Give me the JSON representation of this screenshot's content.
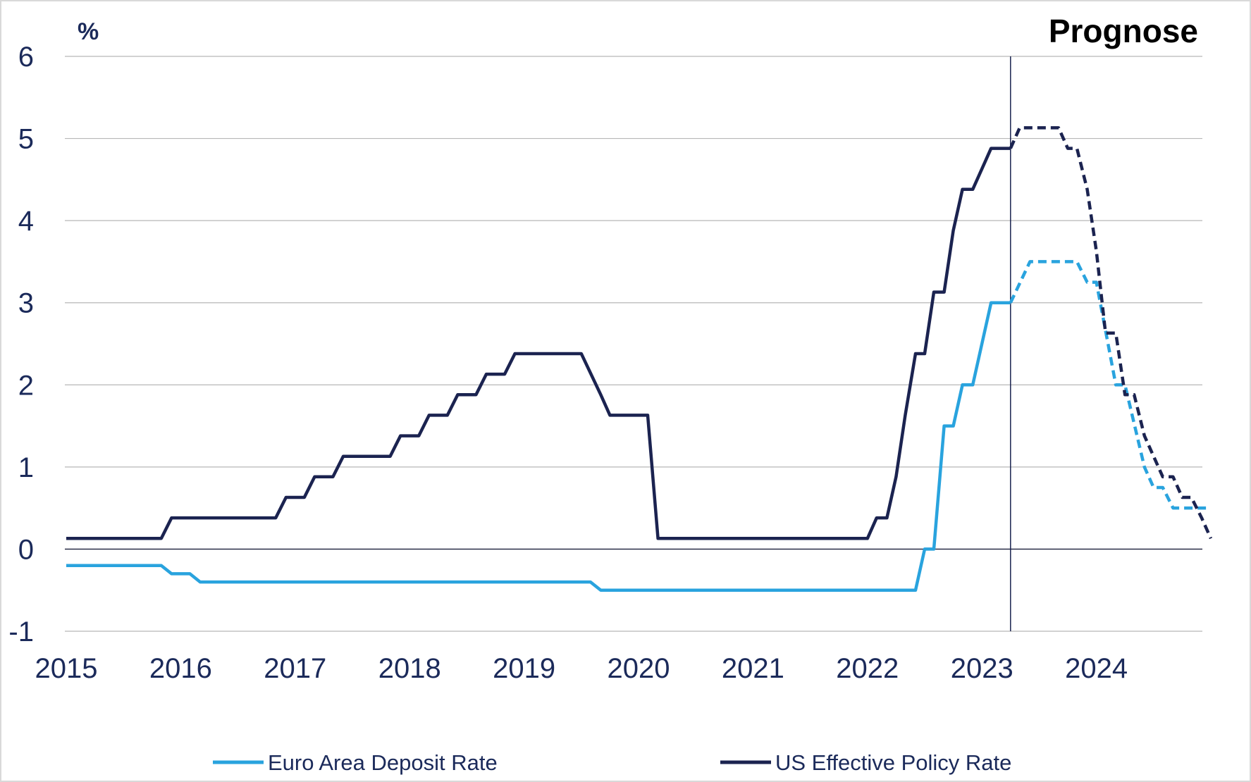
{
  "chart_data": {
    "type": "line",
    "unit_label": "%",
    "annotation": "Prognose",
    "forecast_start": 2023.25,
    "x_range": [
      2015,
      2025
    ],
    "ylim": [
      -1,
      6
    ],
    "y_ticks": [
      "6",
      "5",
      "4",
      "3",
      "2",
      "1",
      "0",
      "-1"
    ],
    "x_ticks": [
      "2015",
      "2016",
      "2017",
      "2018",
      "2019",
      "2020",
      "2021",
      "2022",
      "2023",
      "2024"
    ],
    "grid": "horizontal",
    "legend_position": "bottom",
    "colors": {
      "euro": "#29a3de",
      "us": "#1b2350"
    },
    "series": [
      {
        "name": "Euro Area Deposit Rate",
        "actual": [
          [
            2015.0,
            -0.2
          ],
          [
            2015.83,
            -0.2
          ],
          [
            2015.92,
            -0.3
          ],
          [
            2016.08,
            -0.3
          ],
          [
            2016.17,
            -0.4
          ],
          [
            2019.58,
            -0.4
          ],
          [
            2019.67,
            -0.5
          ],
          [
            2022.42,
            -0.5
          ],
          [
            2022.5,
            0.0
          ],
          [
            2022.58,
            0.0
          ],
          [
            2022.67,
            1.5
          ],
          [
            2022.75,
            1.5
          ],
          [
            2022.83,
            2.0
          ],
          [
            2022.92,
            2.0
          ],
          [
            2023.08,
            3.0
          ],
          [
            2023.25,
            3.0
          ]
        ],
        "forecast": [
          [
            2023.25,
            3.0
          ],
          [
            2023.42,
            3.5
          ],
          [
            2023.83,
            3.5
          ],
          [
            2023.92,
            3.25
          ],
          [
            2024.0,
            3.25
          ],
          [
            2024.17,
            2.0
          ],
          [
            2024.25,
            2.0
          ],
          [
            2024.42,
            1.0
          ],
          [
            2024.5,
            0.75
          ],
          [
            2024.58,
            0.75
          ],
          [
            2024.67,
            0.5
          ],
          [
            2025.0,
            0.5
          ]
        ]
      },
      {
        "name": "US Effective Policy Rate",
        "actual": [
          [
            2015.0,
            0.13
          ],
          [
            2015.83,
            0.13
          ],
          [
            2015.92,
            0.38
          ],
          [
            2016.83,
            0.38
          ],
          [
            2016.92,
            0.63
          ],
          [
            2017.08,
            0.63
          ],
          [
            2017.17,
            0.88
          ],
          [
            2017.33,
            0.88
          ],
          [
            2017.42,
            1.13
          ],
          [
            2017.83,
            1.13
          ],
          [
            2017.92,
            1.38
          ],
          [
            2018.08,
            1.38
          ],
          [
            2018.17,
            1.63
          ],
          [
            2018.33,
            1.63
          ],
          [
            2018.42,
            1.88
          ],
          [
            2018.58,
            1.88
          ],
          [
            2018.67,
            2.13
          ],
          [
            2018.83,
            2.13
          ],
          [
            2018.92,
            2.38
          ],
          [
            2019.5,
            2.38
          ],
          [
            2019.67,
            1.88
          ],
          [
            2019.75,
            1.63
          ],
          [
            2020.08,
            1.63
          ],
          [
            2020.17,
            0.13
          ],
          [
            2022.0,
            0.13
          ],
          [
            2022.08,
            0.38
          ],
          [
            2022.17,
            0.38
          ],
          [
            2022.25,
            0.88
          ],
          [
            2022.33,
            1.63
          ],
          [
            2022.42,
            2.38
          ],
          [
            2022.5,
            2.38
          ],
          [
            2022.58,
            3.13
          ],
          [
            2022.67,
            3.13
          ],
          [
            2022.75,
            3.88
          ],
          [
            2022.83,
            4.38
          ],
          [
            2022.92,
            4.38
          ],
          [
            2023.08,
            4.88
          ],
          [
            2023.25,
            4.88
          ]
        ],
        "forecast": [
          [
            2023.25,
            4.88
          ],
          [
            2023.33,
            5.13
          ],
          [
            2023.67,
            5.13
          ],
          [
            2023.75,
            4.88
          ],
          [
            2023.83,
            4.88
          ],
          [
            2023.92,
            4.38
          ],
          [
            2024.0,
            3.63
          ],
          [
            2024.08,
            2.63
          ],
          [
            2024.17,
            2.63
          ],
          [
            2024.25,
            1.88
          ],
          [
            2024.33,
            1.88
          ],
          [
            2024.42,
            1.38
          ],
          [
            2024.58,
            0.88
          ],
          [
            2024.67,
            0.88
          ],
          [
            2024.75,
            0.63
          ],
          [
            2024.83,
            0.63
          ],
          [
            2024.92,
            0.38
          ],
          [
            2025.0,
            0.13
          ]
        ]
      }
    ]
  }
}
